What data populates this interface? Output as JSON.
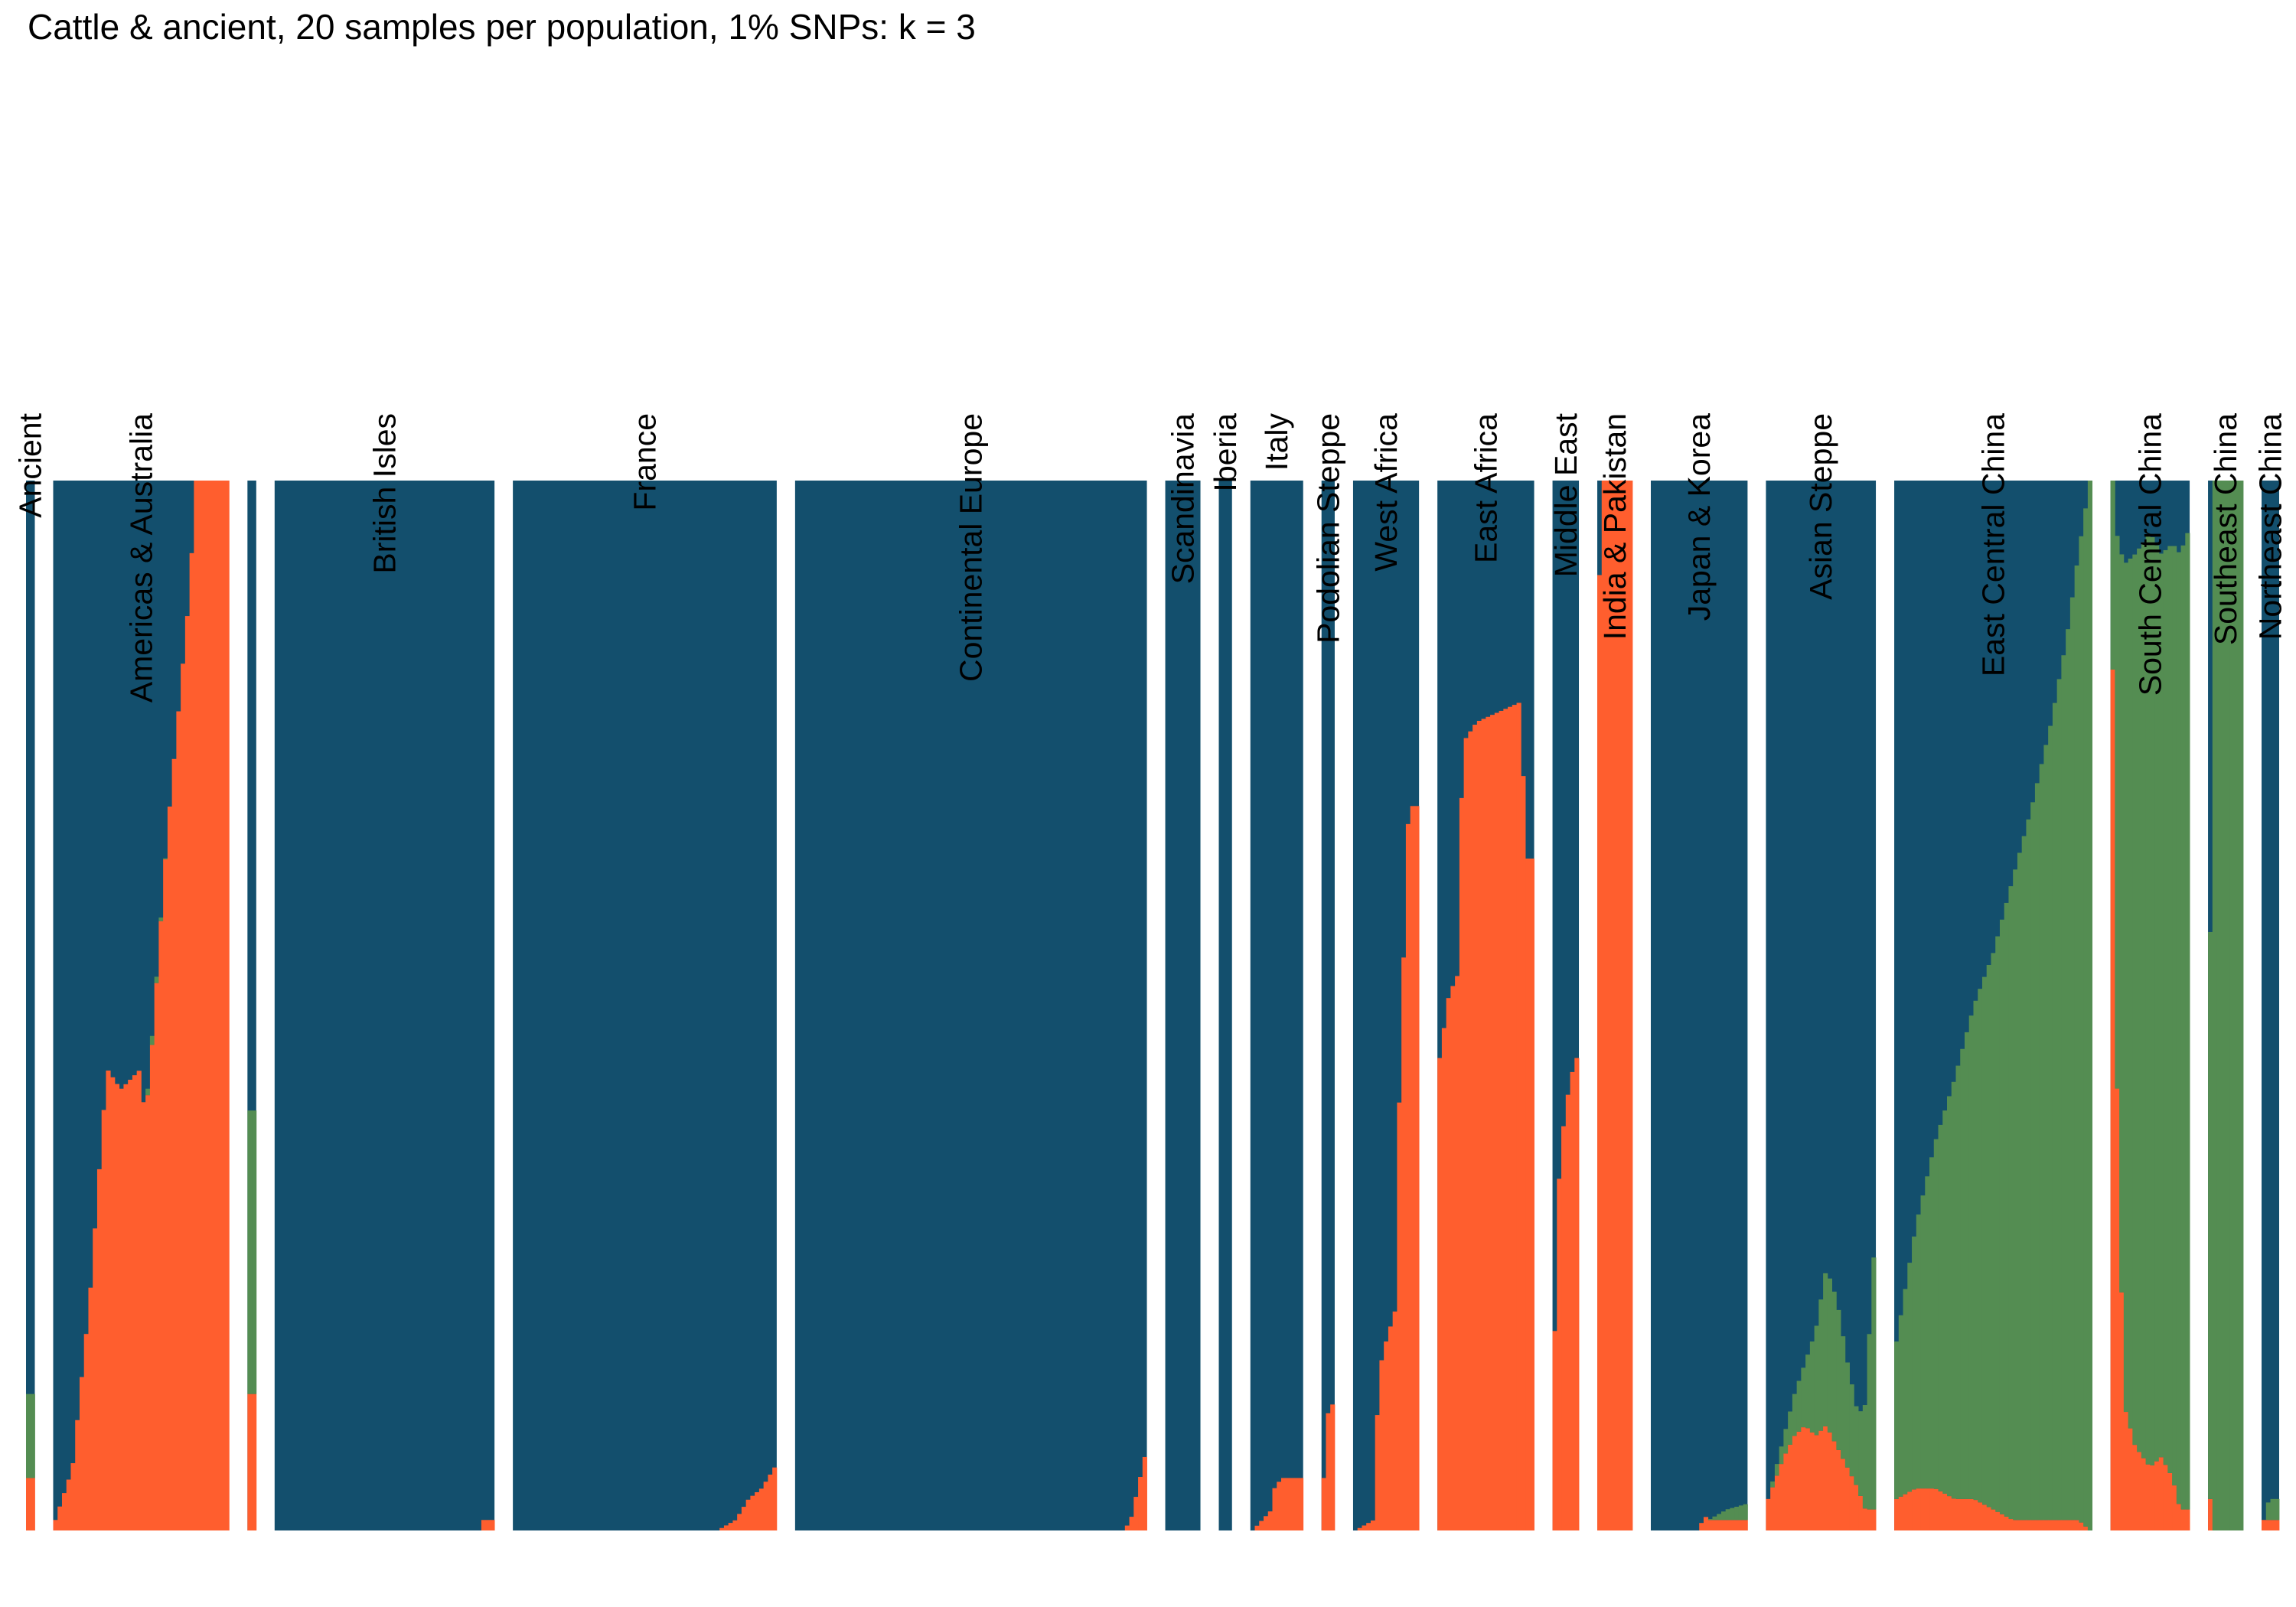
{
  "chart_data": {
    "type": "structure-barplot",
    "title": "Cattle & ancient, 20 samples per population, 1% SNPs: k = 3",
    "xlabel": "",
    "ylabel": "",
    "ylim": [
      0,
      1
    ],
    "grid": false,
    "legend": "none",
    "components": [
      {
        "id": "K1",
        "color": "#134f6d"
      },
      {
        "id": "K2",
        "color": "#ff5e2e"
      },
      {
        "id": "K3",
        "color": "#548d52"
      }
    ],
    "populations": [
      {
        "label": "Ancient",
        "n": 2,
        "profile": [
          [
            0,
            0.05,
            0.08
          ],
          [
            1,
            0.05,
            0.08
          ]
        ]
      },
      {
        "label": "Americas & Australia",
        "n": 40,
        "profile": [
          [
            0,
            0.01,
            0
          ],
          [
            0.1,
            0.06,
            0
          ],
          [
            0.2,
            0.22,
            0
          ],
          [
            0.3,
            0.44,
            0
          ],
          [
            0.38,
            0.42,
            0
          ],
          [
            0.5,
            0.44,
            0
          ],
          [
            0.52,
            0.39,
            0
          ],
          [
            0.55,
            0.43,
            0.01
          ],
          [
            0.65,
            0.66,
            0
          ],
          [
            0.78,
            0.89,
            0
          ],
          [
            0.82,
            1,
            0
          ],
          [
            1,
            1,
            0
          ]
        ]
      },
      {
        "label": "",
        "n": 2,
        "profile": [
          [
            0,
            0.13,
            0.27
          ],
          [
            1,
            0.13,
            0.27
          ]
        ]
      },
      {
        "label": "British Isles",
        "n": 50,
        "profile": [
          [
            0,
            0,
            0
          ],
          [
            0.94,
            0,
            0
          ],
          [
            0.95,
            0.01,
            0
          ],
          [
            1,
            0.01,
            0
          ]
        ]
      },
      {
        "label": "France",
        "n": 60,
        "profile": [
          [
            0,
            0,
            0
          ],
          [
            0.78,
            0,
            0
          ],
          [
            0.85,
            0.01,
            0
          ],
          [
            0.9,
            0.03,
            0
          ],
          [
            0.95,
            0.04,
            0
          ],
          [
            1,
            0.06,
            0
          ]
        ]
      },
      {
        "label": "Continental Europe",
        "n": 80,
        "profile": [
          [
            0,
            0,
            0
          ],
          [
            0.94,
            0,
            0
          ],
          [
            0.96,
            0.01,
            0
          ],
          [
            0.98,
            0.04,
            0
          ],
          [
            1,
            0.07,
            0
          ]
        ]
      },
      {
        "label": "Scandinavia",
        "n": 8,
        "profile": [
          [
            0,
            0,
            0
          ],
          [
            1,
            0,
            0
          ]
        ]
      },
      {
        "label": "Iberia",
        "n": 3,
        "profile": [
          [
            0,
            0,
            0
          ],
          [
            1,
            0,
            0
          ]
        ]
      },
      {
        "label": "Italy",
        "n": 12,
        "profile": [
          [
            0,
            0,
            0
          ],
          [
            0.4,
            0.02,
            0
          ],
          [
            0.45,
            0.04,
            0
          ],
          [
            0.6,
            0.05,
            0
          ],
          [
            0.9,
            0.05,
            0
          ],
          [
            0.95,
            0.05,
            0
          ],
          [
            1,
            0.05,
            0
          ]
        ]
      },
      {
        "label": "Podolian Steppe",
        "n": 3,
        "profile": [
          [
            0,
            0.05,
            0
          ],
          [
            0.4,
            0.11,
            0
          ],
          [
            1,
            0.12,
            0
          ]
        ]
      },
      {
        "label": "West Africa",
        "n": 15,
        "profile": [
          [
            0,
            0,
            0
          ],
          [
            0.3,
            0.01,
            0
          ],
          [
            0.38,
            0.15,
            0
          ],
          [
            0.5,
            0.18,
            0
          ],
          [
            0.65,
            0.21,
            0
          ],
          [
            0.7,
            0.38,
            0
          ],
          [
            0.85,
            0.67,
            0
          ],
          [
            0.9,
            0.69,
            0
          ],
          [
            1,
            0.69,
            0
          ]
        ]
      },
      {
        "label": "East Africa",
        "n": 22,
        "profile": [
          [
            0,
            0.45,
            0
          ],
          [
            0.1,
            0.51,
            0
          ],
          [
            0.2,
            0.53,
            0
          ],
          [
            0.25,
            0.75,
            0
          ],
          [
            0.4,
            0.77,
            0
          ],
          [
            0.9,
            0.79,
            0
          ],
          [
            0.91,
            0.64,
            0
          ],
          [
            1,
            0.64,
            0
          ]
        ]
      },
      {
        "label": "Middle East",
        "n": 6,
        "profile": [
          [
            0,
            0.19,
            0
          ],
          [
            0.1,
            0.3,
            0
          ],
          [
            0.3,
            0.37,
            0
          ],
          [
            0.5,
            0.4,
            0
          ],
          [
            0.7,
            0.43,
            0
          ],
          [
            1,
            0.45,
            0
          ]
        ]
      },
      {
        "label": "India & Pakistan",
        "n": 8,
        "profile": [
          [
            0,
            0.91,
            0
          ],
          [
            0.1,
            1,
            0
          ],
          [
            1,
            1,
            0
          ]
        ]
      },
      {
        "label": "Japan & Korea",
        "n": 22,
        "profile": [
          [
            0,
            0,
            0
          ],
          [
            0.5,
            0,
            0
          ],
          [
            0.55,
            0.015,
            0
          ],
          [
            0.6,
            0.01,
            0
          ],
          [
            0.8,
            0.01,
            0.01
          ],
          [
            1,
            0.01,
            0.015
          ]
        ]
      },
      {
        "label": "Asian Steppe",
        "n": 25,
        "profile": [
          [
            0,
            0.03,
            0
          ],
          [
            0.15,
            0.07,
            0.02
          ],
          [
            0.25,
            0.09,
            0.04
          ],
          [
            0.35,
            0.1,
            0.06
          ],
          [
            0.45,
            0.09,
            0.1
          ],
          [
            0.55,
            0.1,
            0.15
          ],
          [
            0.65,
            0.08,
            0.14
          ],
          [
            0.75,
            0.06,
            0.1
          ],
          [
            0.85,
            0.04,
            0.07
          ],
          [
            0.92,
            0.02,
            0.1
          ],
          [
            1,
            0.02,
            0.24
          ]
        ]
      },
      {
        "label": "East Central China",
        "n": 45,
        "profile": [
          [
            0,
            0.03,
            0.15
          ],
          [
            0.1,
            0.04,
            0.25
          ],
          [
            0.2,
            0.04,
            0.33
          ],
          [
            0.3,
            0.03,
            0.4
          ],
          [
            0.4,
            0.03,
            0.47
          ],
          [
            0.5,
            0.02,
            0.53
          ],
          [
            0.6,
            0.01,
            0.61
          ],
          [
            0.7,
            0.01,
            0.68
          ],
          [
            0.8,
            0.01,
            0.76
          ],
          [
            0.88,
            0.01,
            0.84
          ],
          [
            0.94,
            0.01,
            0.92
          ],
          [
            1,
            0,
            1
          ]
        ]
      },
      {
        "label": "South Central China",
        "n": 18,
        "profile": [
          [
            0,
            0.82,
            0.18
          ],
          [
            0.05,
            0.45,
            0.5
          ],
          [
            0.15,
            0.12,
            0.8
          ],
          [
            0.3,
            0.08,
            0.85
          ],
          [
            0.5,
            0.06,
            0.89
          ],
          [
            0.65,
            0.07,
            0.86
          ],
          [
            0.8,
            0.05,
            0.89
          ],
          [
            0.9,
            0.02,
            0.91
          ],
          [
            1,
            0.02,
            0.93
          ]
        ]
      },
      {
        "label": "Southeast China",
        "n": 8,
        "profile": [
          [
            0,
            0.03,
            0.54
          ],
          [
            0.1,
            0,
            1
          ],
          [
            1,
            0,
            1
          ]
        ]
      },
      {
        "label": "Northeast China",
        "n": 4,
        "profile": [
          [
            0,
            0.01,
            0
          ],
          [
            0.4,
            0.01,
            0.02
          ],
          [
            1,
            0.01,
            0.02
          ]
        ]
      }
    ]
  }
}
